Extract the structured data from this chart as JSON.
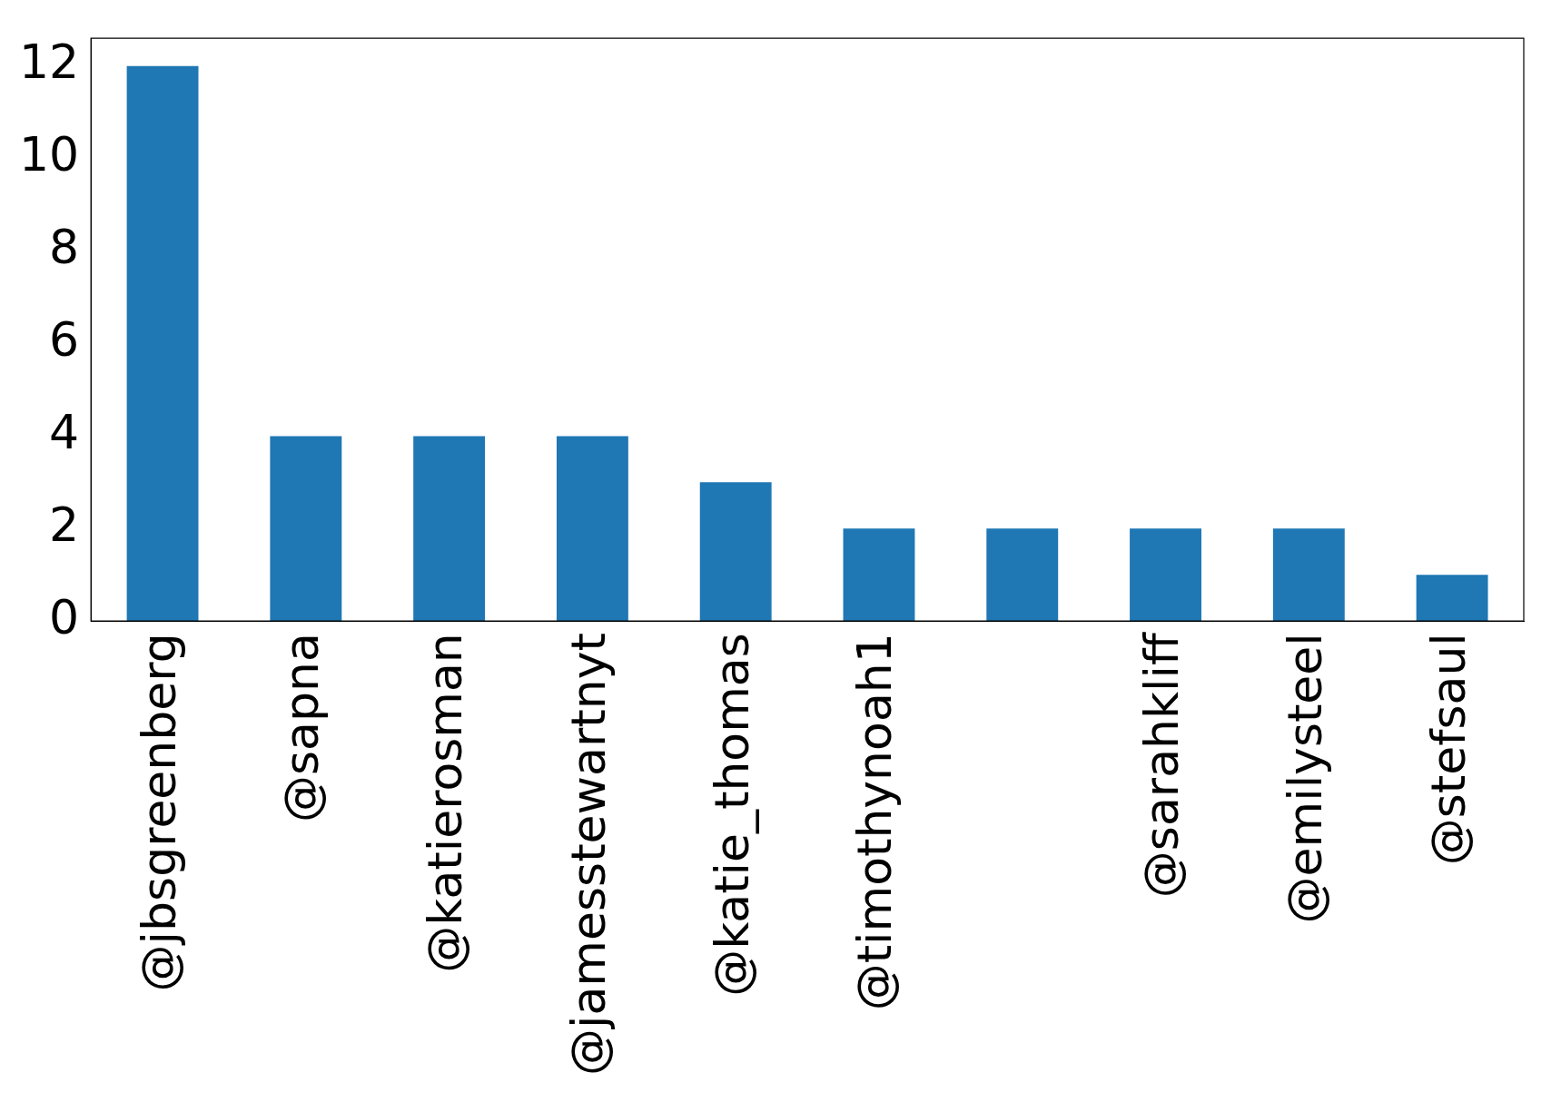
{
  "chart_data": {
    "type": "bar",
    "categories": [
      "@jbsgreenberg",
      "@sapna",
      "@katierosman",
      "@jamesstewartnyt",
      "@katie_thomas",
      "@timothynoah1",
      null,
      "@sarahkliff",
      "@emilysteel",
      "@stefsaul"
    ],
    "values": [
      12,
      4,
      4,
      4,
      3,
      2,
      2,
      2,
      2,
      1
    ],
    "color": "#1f77b4",
    "ylim": [
      0,
      12.6
    ],
    "yticks": [
      0,
      2,
      4,
      6,
      8,
      10,
      12
    ],
    "grid": false,
    "legend": false
  }
}
